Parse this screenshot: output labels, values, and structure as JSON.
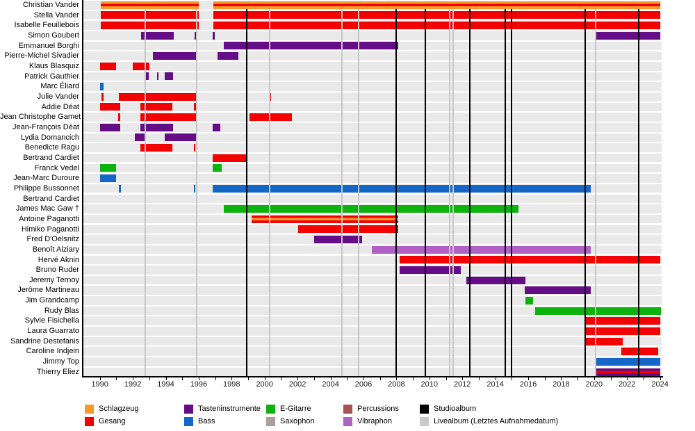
{
  "chart_data": {
    "type": "gantt",
    "description": "Band membership timeline with instrument roles per member and album release markers",
    "x_axis": {
      "start": 1989.0,
      "end": 2024.1,
      "tick_interval": 1,
      "label_years": [
        1990,
        1992,
        1994,
        1996,
        1998,
        2000,
        2002,
        2004,
        2006,
        2008,
        2010,
        2012,
        2014,
        2016,
        2018,
        2020,
        2022,
        2024
      ]
    },
    "roles": {
      "schlagzeug": {
        "label": "Schlagzeug",
        "color": "#F79A2C"
      },
      "gesang": {
        "label": "Gesang",
        "color": "#F40000"
      },
      "tasten": {
        "label": "Tasteninstrumente",
        "color": "#650D87"
      },
      "bass": {
        "label": "Bass",
        "color": "#1467C6"
      },
      "egitarre": {
        "label": "E-Gitarre",
        "color": "#0CB30C"
      },
      "saxophon": {
        "label": "Saxophon",
        "color": "#B19C9C"
      },
      "percussions": {
        "label": "Percussions",
        "color": "#A85250"
      },
      "vibraphon": {
        "label": "Vibraphon",
        "color": "#B061C6"
      }
    },
    "events": {
      "studio_label": "Studioalbum",
      "studio_color": "#000000",
      "live_label": "Livealbum (Letztes Aufnahmedatum)",
      "live_color": "#C9C9C9",
      "studio_years": [
        1998.92,
        2008.0,
        2009.77,
        2012.47,
        2014.6,
        2015.0,
        2019.45,
        2022.7
      ],
      "live_years": [
        1992.77,
        1995.88,
        2000.3,
        2004.68,
        2005.7,
        2011.25,
        2011.45,
        2020.08
      ]
    },
    "members": [
      {
        "name": "Christian Vander",
        "segments": [
          {
            "from": 1990.05,
            "to": 1996.0,
            "roles": [
              "schlagzeug",
              "gesang"
            ]
          },
          {
            "from": 1996.9,
            "to": 2024.0,
            "roles": [
              "schlagzeug",
              "gesang"
            ]
          }
        ]
      },
      {
        "name": "Stella Vander",
        "segments": [
          {
            "from": 1990.05,
            "to": 1996.0,
            "roles": [
              "gesang"
            ]
          },
          {
            "from": 1996.9,
            "to": 2024.0,
            "roles": [
              "gesang"
            ]
          }
        ]
      },
      {
        "name": "Isabelle Feuillebois",
        "segments": [
          {
            "from": 1990.05,
            "to": 1996.0,
            "roles": [
              "gesang"
            ]
          },
          {
            "from": 1996.9,
            "to": 2024.0,
            "roles": [
              "gesang"
            ]
          }
        ]
      },
      {
        "name": "Simon Goubert",
        "segments": [
          {
            "from": 1992.5,
            "to": 1994.5,
            "roles": [
              "tasten"
            ]
          },
          {
            "from": 1995.73,
            "to": 1995.85,
            "roles": [
              "tasten"
            ]
          },
          {
            "from": 1996.85,
            "to": 1996.97,
            "roles": [
              "tasten"
            ]
          },
          {
            "from": 2020.1,
            "to": 2024.0,
            "roles": [
              "tasten"
            ]
          }
        ]
      },
      {
        "name": "Emmanuel Borghi",
        "segments": [
          {
            "from": 1997.5,
            "to": 2008.1,
            "roles": [
              "tasten"
            ]
          }
        ]
      },
      {
        "name": "Pierre-Michel Sivadier",
        "segments": [
          {
            "from": 1993.2,
            "to": 1995.85,
            "roles": [
              "tasten"
            ]
          },
          {
            "from": 1997.15,
            "to": 1998.4,
            "roles": [
              "tasten"
            ]
          }
        ]
      },
      {
        "name": "Klaus Blasquiz",
        "segments": [
          {
            "from": 1990.0,
            "to": 1991.0,
            "roles": [
              "gesang"
            ]
          },
          {
            "from": 1992.0,
            "to": 1993.0,
            "roles": [
              "gesang"
            ]
          }
        ]
      },
      {
        "name": "Patrick Gauthier",
        "segments": [
          {
            "from": 1992.72,
            "to": 1992.95,
            "roles": [
              "tasten"
            ]
          },
          {
            "from": 1993.48,
            "to": 1993.57,
            "roles": [
              "tasten"
            ]
          },
          {
            "from": 1993.95,
            "to": 1994.45,
            "roles": [
              "tasten"
            ]
          }
        ]
      },
      {
        "name": "Marc Éliard",
        "segments": [
          {
            "from": 1990.03,
            "to": 1990.22,
            "roles": [
              "bass"
            ]
          }
        ]
      },
      {
        "name": "Julie Vander",
        "segments": [
          {
            "from": 1990.1,
            "to": 1990.22,
            "roles": [
              "gesang"
            ]
          },
          {
            "from": 1991.17,
            "to": 1995.84,
            "roles": [
              "gesang"
            ]
          },
          {
            "from": 2000.25,
            "to": 2000.38,
            "roles": [
              "gesang"
            ]
          }
        ]
      },
      {
        "name": "Addie Déat",
        "segments": [
          {
            "from": 1990.03,
            "to": 1991.25,
            "roles": [
              "gesang"
            ]
          },
          {
            "from": 1992.47,
            "to": 1994.4,
            "roles": [
              "gesang"
            ]
          },
          {
            "from": 1995.7,
            "to": 1995.85,
            "roles": [
              "gesang"
            ]
          }
        ]
      },
      {
        "name": "Jean Christophe Gamet",
        "segments": [
          {
            "from": 1991.12,
            "to": 1991.25,
            "roles": [
              "gesang"
            ]
          },
          {
            "from": 1992.47,
            "to": 1995.84,
            "roles": [
              "gesang"
            ]
          },
          {
            "from": 1999.1,
            "to": 2001.65,
            "roles": [
              "gesang"
            ]
          }
        ]
      },
      {
        "name": "Jean-François Déat",
        "segments": [
          {
            "from": 1990.03,
            "to": 1991.25,
            "roles": [
              "tasten"
            ]
          },
          {
            "from": 1992.47,
            "to": 1994.45,
            "roles": [
              "tasten"
            ]
          },
          {
            "from": 1996.85,
            "to": 1997.3,
            "roles": [
              "tasten"
            ]
          }
        ]
      },
      {
        "name": "Lydia Domancich",
        "segments": [
          {
            "from": 1992.1,
            "to": 1992.7,
            "roles": [
              "tasten"
            ]
          },
          {
            "from": 1993.95,
            "to": 1995.84,
            "roles": [
              "tasten"
            ]
          }
        ]
      },
      {
        "name": "Benedicte Ragu",
        "segments": [
          {
            "from": 1992.47,
            "to": 1994.4,
            "roles": [
              "gesang"
            ]
          },
          {
            "from": 1995.7,
            "to": 1995.8,
            "roles": [
              "gesang"
            ]
          }
        ]
      },
      {
        "name": "Bertrand Cardiet",
        "segments": [
          {
            "from": 1996.85,
            "to": 1998.9,
            "roles": [
              "gesang"
            ]
          }
        ]
      },
      {
        "name": "Franck Vedel",
        "segments": [
          {
            "from": 1990.0,
            "to": 1991.0,
            "roles": [
              "egitarre"
            ]
          },
          {
            "from": 1996.85,
            "to": 1997.4,
            "roles": [
              "egitarre"
            ]
          }
        ]
      },
      {
        "name": "Jean-Marc Duroure",
        "segments": [
          {
            "from": 1990.0,
            "to": 1991.0,
            "roles": [
              "bass"
            ]
          }
        ]
      },
      {
        "name": "Philippe Bussonnet",
        "segments": [
          {
            "from": 1991.17,
            "to": 1991.28,
            "roles": [
              "bass"
            ]
          },
          {
            "from": 1995.7,
            "to": 1995.8,
            "roles": [
              "bass"
            ]
          },
          {
            "from": 1996.85,
            "to": 2019.8,
            "roles": [
              "bass"
            ]
          }
        ]
      },
      {
        "name": "Bertrand Cardiet",
        "segments": []
      },
      {
        "name": "James Mac Gaw †",
        "segments": [
          {
            "from": 1997.5,
            "to": 2015.4,
            "roles": [
              "egitarre"
            ]
          }
        ]
      },
      {
        "name": "Antoine Paganotti",
        "segments": [
          {
            "from": 1999.2,
            "to": 2008.1,
            "roles": [
              "gesang",
              "schlagzeug"
            ]
          }
        ]
      },
      {
        "name": "Himiko Paganotti",
        "segments": [
          {
            "from": 2002.05,
            "to": 2008.1,
            "roles": [
              "gesang"
            ]
          }
        ]
      },
      {
        "name": "Fred D'Oelsnitz",
        "segments": [
          {
            "from": 2003.0,
            "to": 2005.9,
            "roles": [
              "tasten"
            ]
          }
        ]
      },
      {
        "name": "Benoît Alziary",
        "segments": [
          {
            "from": 2006.5,
            "to": 2019.8,
            "roles": [
              "vibraphon"
            ]
          }
        ]
      },
      {
        "name": "Hervé Aknin",
        "segments": [
          {
            "from": 2008.2,
            "to": 2024.0,
            "roles": [
              "gesang"
            ]
          }
        ]
      },
      {
        "name": "Bruno Ruder",
        "segments": [
          {
            "from": 2008.2,
            "to": 2011.9,
            "roles": [
              "tasten"
            ]
          }
        ]
      },
      {
        "name": "Jeremy Ternoy",
        "segments": [
          {
            "from": 2012.25,
            "to": 2015.85,
            "roles": [
              "tasten"
            ]
          }
        ]
      },
      {
        "name": "Jerôme Martineau",
        "segments": [
          {
            "from": 2015.8,
            "to": 2019.8,
            "roles": [
              "tasten"
            ]
          }
        ]
      },
      {
        "name": "Jim Grandcamp",
        "segments": [
          {
            "from": 2015.85,
            "to": 2016.3,
            "roles": [
              "egitarre"
            ]
          }
        ]
      },
      {
        "name": "Rudy Blas",
        "segments": [
          {
            "from": 2016.4,
            "to": 2024.05,
            "roles": [
              "egitarre"
            ]
          }
        ]
      },
      {
        "name": "Sylvie Fisichella",
        "segments": [
          {
            "from": 2019.45,
            "to": 2024.0,
            "roles": [
              "gesang"
            ]
          }
        ]
      },
      {
        "name": "Laura Guarrato",
        "segments": [
          {
            "from": 2019.45,
            "to": 2024.0,
            "roles": [
              "gesang"
            ]
          }
        ]
      },
      {
        "name": "Sandrine Destefanis",
        "segments": [
          {
            "from": 2019.45,
            "to": 2021.75,
            "roles": [
              "gesang"
            ]
          }
        ]
      },
      {
        "name": "Caroline Indjein",
        "segments": [
          {
            "from": 2021.65,
            "to": 2023.9,
            "roles": [
              "gesang"
            ]
          }
        ]
      },
      {
        "name": "Jimmy Top",
        "segments": [
          {
            "from": 2020.1,
            "to": 2024.0,
            "roles": [
              "bass"
            ]
          }
        ]
      },
      {
        "name": "Thierry Eliez",
        "segments": [
          {
            "from": 2020.1,
            "to": 2024.0,
            "roles": [
              "tasten",
              "gesang"
            ]
          }
        ]
      }
    ]
  },
  "legend": {
    "items": [
      {
        "label": "Schlagzeug",
        "color": "#F79A2C",
        "col": 0,
        "row": 0
      },
      {
        "label": "Gesang",
        "color": "#F40000",
        "col": 0,
        "row": 1
      },
      {
        "label": "Tasteninstrumente",
        "color": "#650D87",
        "col": 1,
        "row": 0
      },
      {
        "label": "Bass",
        "color": "#1467C6",
        "col": 1,
        "row": 1
      },
      {
        "label": "E-Gitarre",
        "color": "#0CB30C",
        "col": 2,
        "row": 0
      },
      {
        "label": "Saxophon",
        "color": "#B19C9C",
        "col": 2,
        "row": 1
      },
      {
        "label": "Percussions",
        "color": "#A85250",
        "col": 3,
        "row": 0
      },
      {
        "label": "Vibraphon",
        "color": "#B061C6",
        "col": 3,
        "row": 1
      },
      {
        "label": "Studioalbum",
        "color": "#000000",
        "col": 4,
        "row": 0
      },
      {
        "label": "Livealbum (Letztes Aufnahmedatum)",
        "color": "#C9C9C9",
        "col": 4,
        "row": 1
      }
    ]
  }
}
